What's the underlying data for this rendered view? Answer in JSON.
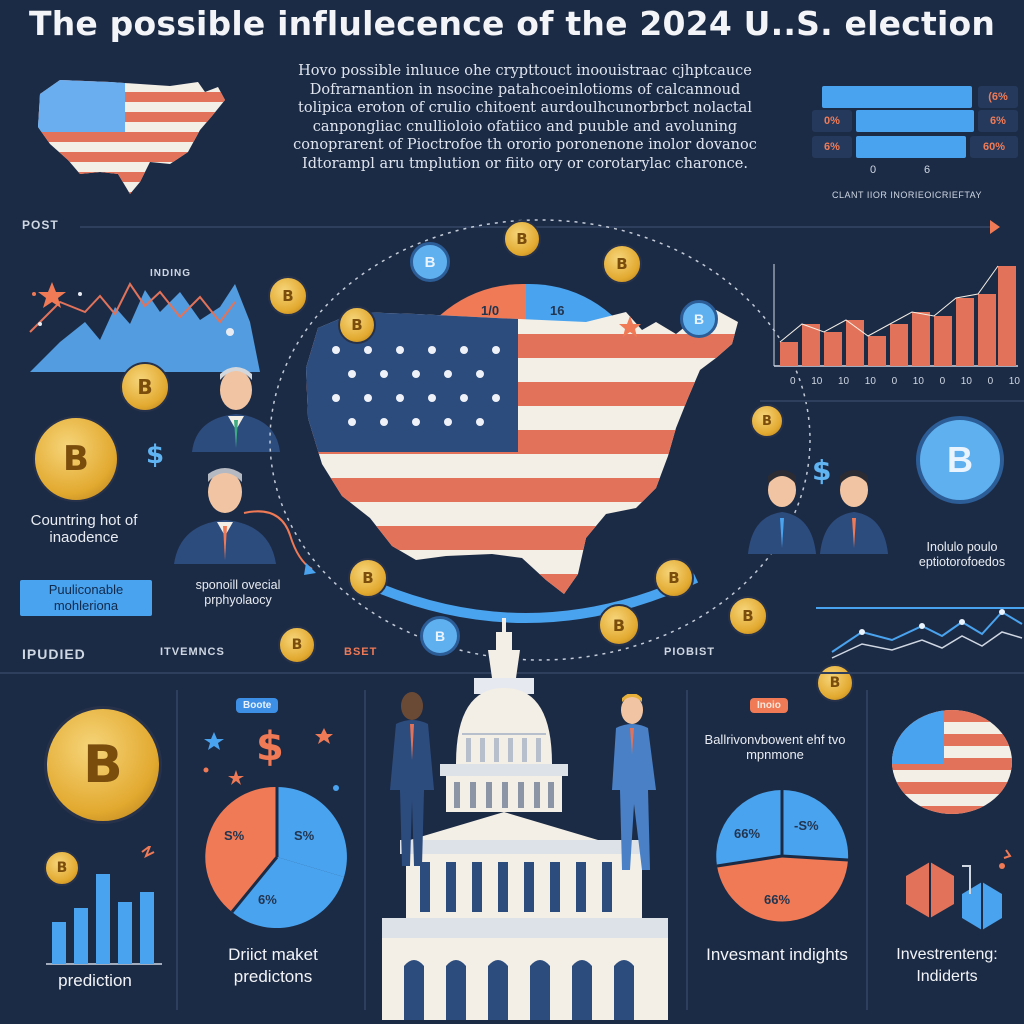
{
  "header": {
    "title": "The possible influlecence of the 2024 U..S. election",
    "intro_lines": [
      "Hovo possible inluuce ohe crypttouct inoouistraac cjhptcauce",
      "Dofrarnantion in nsocine patahcoeinlotioms of calcannoud",
      "tolipica eroton of crulio chitoent aurdoulhcunorbrbct nolactal",
      "canpongliac cnullioloio ofatiico and puuble and avoluning",
      "conoprarent of Pioctrofoe th ororio poronenone inolor dovanoc",
      "Idtorampl aru tmplution or fiito ory or corotarylac charonce."
    ]
  },
  "top_right_chart": {
    "values": [
      "(6%",
      "0%",
      "6%",
      "60%"
    ],
    "ticks": [
      "0",
      "6"
    ],
    "caption": "CLANT IIOR INORIEOICRIEFTAY"
  },
  "section_labels": {
    "post": "POST",
    "inding": "INDING",
    "ipudied": "IPUDIED",
    "itvemncs": "ITVEMNCS",
    "bset": "BSET",
    "piobist": "PIOBIST"
  },
  "left_panel": {
    "counting_label": "Countring hot of inaodence",
    "public_badge": "Puuliconable mohleriona",
    "sponsor_text": "sponoill ovecial prphyolaocy",
    "coin_symbol": "B",
    "dollar": "$"
  },
  "center_map": {
    "pie_left": "1/0",
    "pie_right": "16"
  },
  "right_panel": {
    "bar_chart_ticks": [
      "0",
      "10",
      "10",
      "10",
      "0",
      "10",
      "0",
      "10",
      "0",
      "10"
    ],
    "caption": "Inolulo poulo eptiotorofoedos",
    "coin_symbol": "B",
    "dollar": "$"
  },
  "bottom": {
    "col1_label": "prediction",
    "col2_badge": "Boote",
    "col2_label": "Driict maket predictons",
    "col2_pie": {
      "a": "S%",
      "b": "S%",
      "c": "6%"
    },
    "col4_badge": "Inoio",
    "col4_heading": "Ballrivonvbowent ehf tvo mpnmone",
    "col4_pie": {
      "a": "66%",
      "b": "-S%",
      "c": "66%"
    },
    "col4_label": "Invesmant indights",
    "col5_label": "Investrenteng: Indiderts",
    "dollar": "$"
  },
  "colors": {
    "background": "#1c2b45",
    "accent_blue": "#4aa3ee",
    "accent_orange": "#ef7a55",
    "gold": "#e6b03a",
    "flag_red": "#e2735a",
    "flag_navy": "#2d4c7e"
  }
}
